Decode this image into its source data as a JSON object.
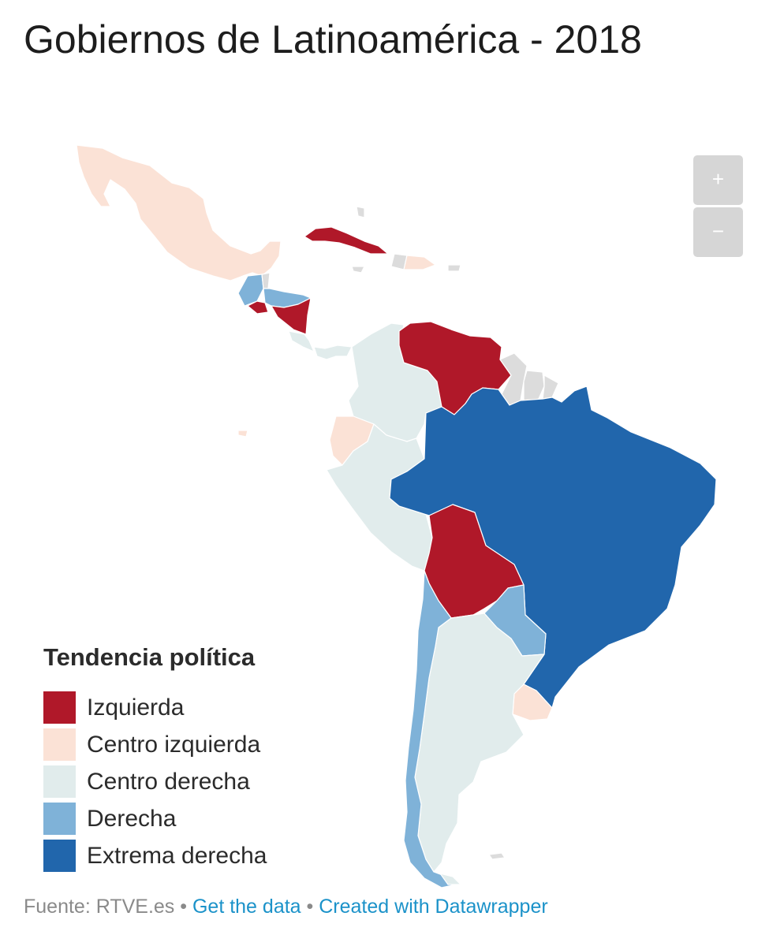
{
  "title": "Gobiernos de Latinoamérica - 2018",
  "zoom": {
    "in_label": "+",
    "out_label": "−"
  },
  "legend": {
    "title": "Tendencia política",
    "items": [
      {
        "label": "Izquierda",
        "color": "#b01829"
      },
      {
        "label": "Centro izquierda",
        "color": "#fbe2d6"
      },
      {
        "label": "Centro derecha",
        "color": "#e1ecec"
      },
      {
        "label": "Derecha",
        "color": "#7fb2d8"
      },
      {
        "label": "Extrema derecha",
        "color": "#2166ac"
      }
    ]
  },
  "colors": {
    "no_data": "#dcdcdc"
  },
  "footer": {
    "source": "Fuente: RTVE.es",
    "separator": "•",
    "get_data": "Get the data",
    "created_with": "Created with Datawrapper"
  }
}
